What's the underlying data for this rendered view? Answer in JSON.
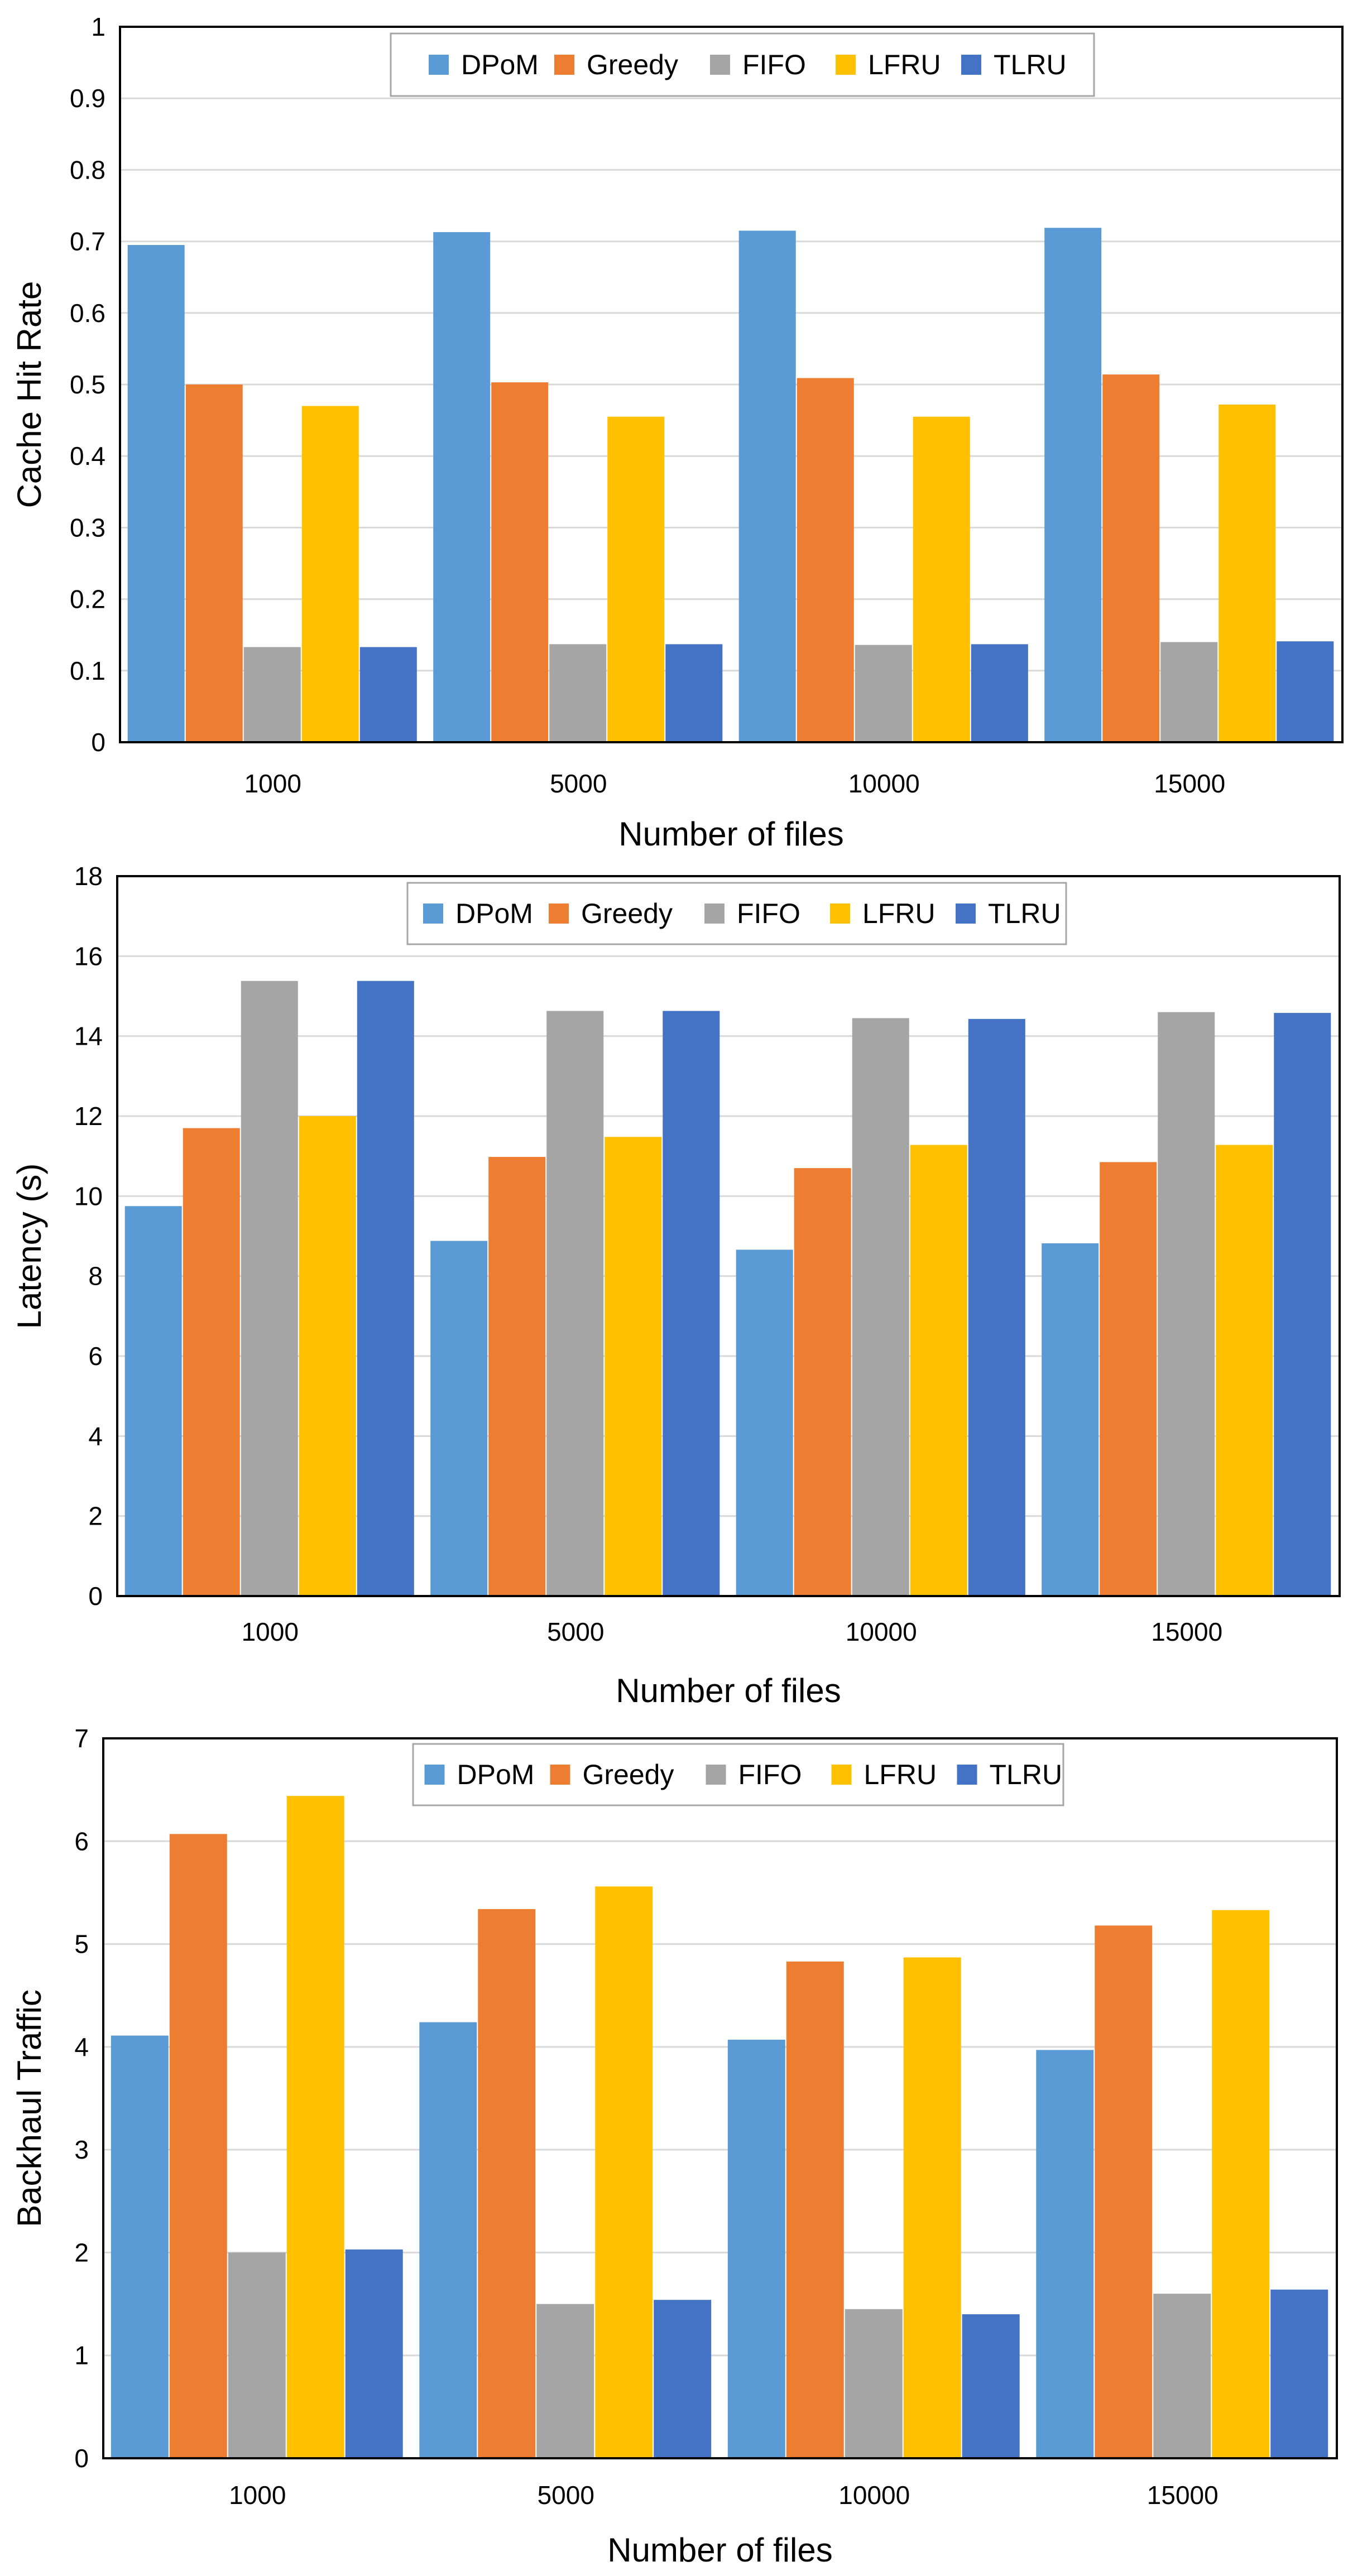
{
  "colors": {
    "DPoM": "#5B9BD5",
    "Greedy": "#ED7D31",
    "FIFO": "#A5A5A5",
    "LFRU": "#FFC000",
    "TLRU": "#4472C4"
  },
  "chart_data": [
    {
      "type": "bar",
      "ylabel": "Cache Hit Rate",
      "xlabel": "Number of files",
      "legend_position": "top-center",
      "grid": true,
      "ylim": [
        0,
        1
      ],
      "yticks": [
        "0",
        "0.1",
        "0.2",
        "0.3",
        "0.4",
        "0.5",
        "0.6",
        "0.7",
        "0.8",
        "0.9",
        "1"
      ],
      "categories": [
        "1000",
        "5000",
        "10000",
        "15000"
      ],
      "series": [
        {
          "name": "DPoM",
          "values": [
            0.695,
            0.713,
            0.715,
            0.719
          ]
        },
        {
          "name": "Greedy",
          "values": [
            0.5,
            0.503,
            0.509,
            0.514
          ]
        },
        {
          "name": "FIFO",
          "values": [
            0.133,
            0.137,
            0.136,
            0.14
          ]
        },
        {
          "name": "LFRU",
          "values": [
            0.47,
            0.455,
            0.455,
            0.472
          ]
        },
        {
          "name": "TLRU",
          "values": [
            0.133,
            0.137,
            0.137,
            0.141
          ]
        }
      ]
    },
    {
      "type": "bar",
      "ylabel": "Latency (s)",
      "xlabel": "Number of files",
      "legend_position": "top-center",
      "grid": true,
      "ylim": [
        0,
        18
      ],
      "yticks": [
        "0",
        "2",
        "4",
        "6",
        "8",
        "10",
        "12",
        "14",
        "16",
        "18"
      ],
      "categories": [
        "1000",
        "5000",
        "10000",
        "15000"
      ],
      "series": [
        {
          "name": "DPoM",
          "values": [
            9.75,
            8.88,
            8.66,
            8.82
          ]
        },
        {
          "name": "Greedy",
          "values": [
            11.7,
            10.98,
            10.7,
            10.85
          ]
        },
        {
          "name": "FIFO",
          "values": [
            15.38,
            14.63,
            14.45,
            14.6
          ]
        },
        {
          "name": "LFRU",
          "values": [
            12.0,
            11.48,
            11.28,
            11.28
          ]
        },
        {
          "name": "TLRU",
          "values": [
            15.38,
            14.63,
            14.43,
            14.58
          ]
        }
      ]
    },
    {
      "type": "bar",
      "ylabel": "Backhaul Traffic",
      "xlabel": "Number of files",
      "legend_position": "top-center",
      "grid": true,
      "ylim": [
        0,
        7
      ],
      "yticks": [
        "0",
        "1",
        "2",
        "3",
        "4",
        "5",
        "6",
        "7"
      ],
      "categories": [
        "1000",
        "5000",
        "10000",
        "15000"
      ],
      "series": [
        {
          "name": "DPoM",
          "values": [
            4.11,
            4.24,
            4.07,
            3.97
          ]
        },
        {
          "name": "Greedy",
          "values": [
            6.07,
            5.34,
            4.83,
            5.18
          ]
        },
        {
          "name": "FIFO",
          "values": [
            2.0,
            1.5,
            1.45,
            1.6
          ]
        },
        {
          "name": "LFRU",
          "values": [
            6.44,
            5.56,
            4.87,
            5.33
          ]
        },
        {
          "name": "TLRU",
          "values": [
            2.03,
            1.54,
            1.4,
            1.64
          ]
        }
      ]
    }
  ]
}
